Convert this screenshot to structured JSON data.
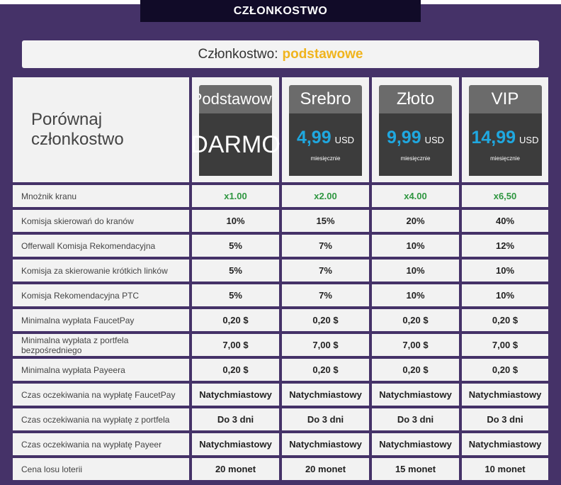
{
  "header": {
    "title": "CZŁONKOSTWO"
  },
  "membership": {
    "label": "Członkostwo:",
    "level": "podstawowe"
  },
  "compare_title": "Porównaj członkostwo",
  "plans": [
    {
      "name": "Podstawowy",
      "free_text": "DARMO"
    },
    {
      "name": "Srebro",
      "price": "4,99",
      "currency": "USD",
      "period": "miesięcznie"
    },
    {
      "name": "Złoto",
      "price": "9,99",
      "currency": "USD",
      "period": "miesięcznie"
    },
    {
      "name": "VIP",
      "price": "14,99",
      "currency": "USD",
      "period": "miesięcznie"
    }
  ],
  "rows": [
    {
      "label": "Mnożnik kranu",
      "values": [
        "x1.00",
        "x2.00",
        "x4.00",
        "x6,50"
      ]
    },
    {
      "label": "Komisja skierowań do kranów",
      "values": [
        "10%",
        "15%",
        "20%",
        "40%"
      ]
    },
    {
      "label": "Offerwall Komisja Rekomendacyjna",
      "values": [
        "5%",
        "7%",
        "10%",
        "12%"
      ]
    },
    {
      "label": "Komisja za skierowanie krótkich linków",
      "values": [
        "5%",
        "7%",
        "10%",
        "10%"
      ]
    },
    {
      "label": "Komisja Rekomendacyjna PTC",
      "values": [
        "5%",
        "7%",
        "10%",
        "10%"
      ]
    },
    {
      "label": "Minimalna wypłata FaucetPay",
      "values": [
        "0,20 $",
        "0,20 $",
        "0,20 $",
        "0,20 $"
      ]
    },
    {
      "label": "Minimalna wypłata z portfela bezpośredniego",
      "values": [
        "7,00 $",
        "7,00 $",
        "7,00 $",
        "7,00 $"
      ]
    },
    {
      "label": "Minimalna wypłata Payeera",
      "values": [
        "0,20 $",
        "0,20 $",
        "0,20 $",
        "0,20 $"
      ]
    },
    {
      "label": "Czas oczekiwania na wypłatę FaucetPay",
      "values": [
        "Natychmiastowy",
        "Natychmiastowy",
        "Natychmiastowy",
        "Natychmiastowy"
      ]
    },
    {
      "label": "Czas oczekiwania na wypłatę z portfela",
      "values": [
        "Do 3 dni",
        "Do 3 dni",
        "Do 3 dni",
        "Do 3 dni"
      ]
    },
    {
      "label": "Czas oczekiwania na wypłatę Payeer",
      "values": [
        "Natychmiastowy",
        "Natychmiastowy",
        "Natychmiastowy",
        "Natychmiastowy"
      ]
    },
    {
      "label": "Cena losu loterii",
      "values": [
        "20 monet",
        "20 monet",
        "15 monet",
        "10 monet"
      ]
    }
  ],
  "colors": {
    "background": "#453268",
    "title_bar": "#110b28",
    "accent_gold": "#f0b41d",
    "price_blue": "#1fa8e0",
    "multiplier_green": "#2e9640"
  }
}
